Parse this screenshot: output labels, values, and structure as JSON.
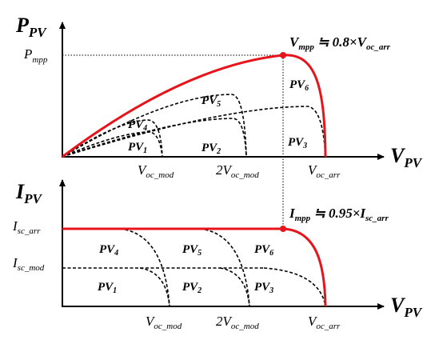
{
  "top_plot": {
    "y_axis": {
      "base": "P",
      "sub": "PV"
    },
    "x_axis": {
      "base": "V",
      "sub": "PV"
    },
    "y_marker": {
      "base": "P",
      "sub": "mpp"
    },
    "annotation": {
      "base": "V",
      "sub": "mpp",
      "relation": " ≒ 0.8×",
      "ref_base": "V",
      "ref_sub": "oc_arr"
    },
    "curve_labels": [
      {
        "base": "PV",
        "sub": "1"
      },
      {
        "base": "PV",
        "sub": "2"
      },
      {
        "base": "PV",
        "sub": "3"
      },
      {
        "base": "PV",
        "sub": "4"
      },
      {
        "base": "PV",
        "sub": "5"
      },
      {
        "base": "PV",
        "sub": "6"
      }
    ],
    "x_labels": [
      {
        "base": "V",
        "sub": "oc_mod"
      },
      {
        "prefix": "2",
        "base": "V",
        "sub": "oc_mod"
      },
      {
        "base": "V",
        "sub": "oc_arr"
      }
    ]
  },
  "bottom_plot": {
    "y_axis": {
      "base": "I",
      "sub": "PV"
    },
    "x_axis": {
      "base": "V",
      "sub": "PV"
    },
    "y_markers": [
      {
        "base": "I",
        "sub": "sc_arr"
      },
      {
        "base": "I",
        "sub": "sc_mod"
      }
    ],
    "annotation": {
      "base": "I",
      "sub": "mpp",
      "relation": " ≒ 0.95×",
      "ref_base": "I",
      "ref_sub": "sc_arr"
    },
    "curve_labels": [
      {
        "base": "PV",
        "sub": "1"
      },
      {
        "base": "PV",
        "sub": "2"
      },
      {
        "base": "PV",
        "sub": "3"
      },
      {
        "base": "PV",
        "sub": "4"
      },
      {
        "base": "PV",
        "sub": "5"
      },
      {
        "base": "PV",
        "sub": "6"
      }
    ],
    "x_labels": [
      {
        "base": "V",
        "sub": "oc_mod"
      },
      {
        "prefix": "2",
        "base": "V",
        "sub": "oc_mod"
      },
      {
        "base": "V",
        "sub": "oc_arr"
      }
    ]
  }
}
